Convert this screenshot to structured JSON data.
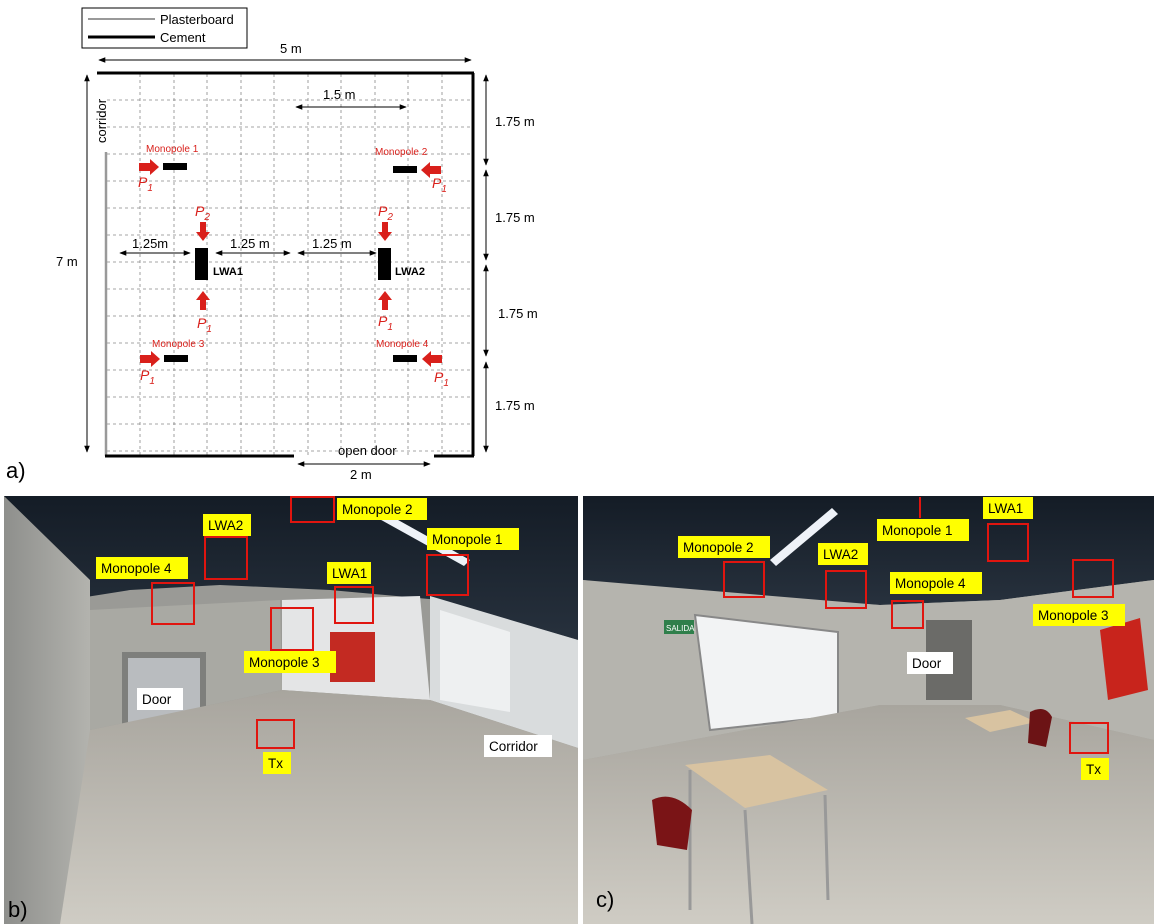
{
  "panel_a": {
    "letter": "a)",
    "legend": {
      "plasterboard": "Plasterboard",
      "cement": "Cement"
    },
    "dims": {
      "width": "5 m",
      "height": "7 m",
      "monopole_sep": "1.5 m",
      "row1": "1.75 m",
      "row2": "1.75 m",
      "row3": "1.75 m",
      "row4": "1.75 m",
      "lwa_left": "1.25m",
      "lwa_mid": "1.25 m",
      "lwa_right": "1.25 m",
      "door_width": "2 m"
    },
    "labels": {
      "corridor": "corridor",
      "open_door": "open door",
      "monopole1": "Monopole 1",
      "monopole2": "Monopole 2",
      "monopole3": "Monopole 3",
      "monopole4": "Monopole 4",
      "lwa1": "LWA1",
      "lwa2": "LWA2",
      "p": "P",
      "sub1": "1",
      "sub2": "2"
    }
  },
  "panel_b": {
    "letter": "b)",
    "tags": {
      "monopole2": "Monopole 2",
      "lwa2": "LWA2",
      "monopole1": "Monopole 1",
      "monopole4": "Monopole 4",
      "lwa1": "LWA1",
      "monopole3": "Monopole 3",
      "door": "Door",
      "corridor": "Corridor",
      "tx": "Tx"
    }
  },
  "panel_c": {
    "letter": "c)",
    "tags": {
      "monopole2": "Monopole 2",
      "monopole1": "Monopole 1",
      "lwa1": "LWA1",
      "lwa2": "LWA2",
      "monopole4": "Monopole 4",
      "monopole3": "Monopole 3",
      "door": "Door",
      "tx": "Tx",
      "exit_sign": "SALIDA"
    }
  },
  "colors": {
    "red": "#d9201b",
    "yellow": "#ffff00",
    "ceiling": "#1d2733",
    "floor": "#b8b4ab",
    "wall": "#c7c6c2"
  }
}
